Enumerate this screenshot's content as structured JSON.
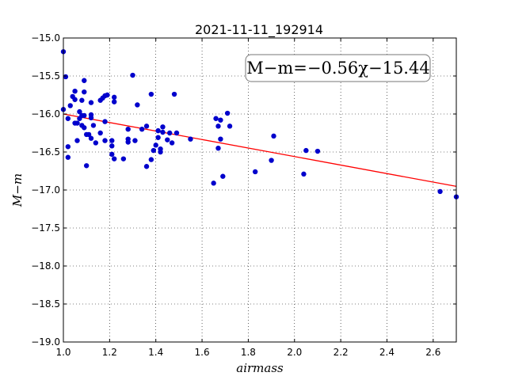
{
  "chart_data": {
    "type": "scatter",
    "title": "2021-11-11_192914",
    "xlabel": "airmass",
    "ylabel": "M−m",
    "xlim": [
      1.0,
      2.7
    ],
    "ylim": [
      -19.0,
      -15.0
    ],
    "xticks": [
      "1.0",
      "1.2",
      "1.4",
      "1.6",
      "1.8",
      "2.0",
      "2.2",
      "2.4",
      "2.6"
    ],
    "yticks": [
      "−15.0",
      "−15.5",
      "−16.0",
      "−16.5",
      "−17.0",
      "−17.5",
      "−18.0",
      "−18.5",
      "−19.0"
    ],
    "grid": true,
    "annotation": "M−m=−0.56χ−15.44",
    "fit": {
      "slope": -0.56,
      "intercept": -15.44,
      "color": "#ff0000"
    },
    "marker_color": "#0000cc",
    "points": [
      [
        1.0,
        -15.18
      ],
      [
        1.01,
        -15.51
      ],
      [
        1.0,
        -15.94
      ],
      [
        1.02,
        -16.06
      ],
      [
        1.02,
        -16.43
      ],
      [
        1.02,
        -16.57
      ],
      [
        1.03,
        -15.89
      ],
      [
        1.04,
        -15.77
      ],
      [
        1.05,
        -15.7
      ],
      [
        1.05,
        -15.81
      ],
      [
        1.05,
        -16.12
      ],
      [
        1.06,
        -16.12
      ],
      [
        1.06,
        -16.35
      ],
      [
        1.07,
        -16.06
      ],
      [
        1.07,
        -15.97
      ],
      [
        1.08,
        -16.15
      ],
      [
        1.08,
        -16.02
      ],
      [
        1.08,
        -15.82
      ],
      [
        1.09,
        -15.56
      ],
      [
        1.09,
        -15.71
      ],
      [
        1.09,
        -16.18
      ],
      [
        1.09,
        -16.02
      ],
      [
        1.1,
        -16.68
      ],
      [
        1.1,
        -16.27
      ],
      [
        1.11,
        -16.27
      ],
      [
        1.12,
        -16.05
      ],
      [
        1.12,
        -16.32
      ],
      [
        1.12,
        -15.85
      ],
      [
        1.12,
        -16.01
      ],
      [
        1.13,
        -16.15
      ],
      [
        1.14,
        -16.38
      ],
      [
        1.16,
        -16.25
      ],
      [
        1.16,
        -15.82
      ],
      [
        1.17,
        -15.79
      ],
      [
        1.18,
        -15.76
      ],
      [
        1.18,
        -16.1
      ],
      [
        1.18,
        -16.35
      ],
      [
        1.19,
        -15.75
      ],
      [
        1.21,
        -16.35
      ],
      [
        1.21,
        -16.42
      ],
      [
        1.21,
        -16.53
      ],
      [
        1.22,
        -16.59
      ],
      [
        1.22,
        -15.84
      ],
      [
        1.22,
        -15.78
      ],
      [
        1.26,
        -16.59
      ],
      [
        1.28,
        -16.2
      ],
      [
        1.28,
        -16.33
      ],
      [
        1.28,
        -16.37
      ],
      [
        1.3,
        -15.49
      ],
      [
        1.31,
        -16.35
      ],
      [
        1.32,
        -15.88
      ],
      [
        1.34,
        -16.2
      ],
      [
        1.36,
        -16.16
      ],
      [
        1.36,
        -16.69
      ],
      [
        1.38,
        -15.74
      ],
      [
        1.38,
        -16.6
      ],
      [
        1.39,
        -16.48
      ],
      [
        1.4,
        -16.41
      ],
      [
        1.41,
        -16.31
      ],
      [
        1.41,
        -16.22
      ],
      [
        1.42,
        -16.5
      ],
      [
        1.42,
        -16.46
      ],
      [
        1.43,
        -16.17
      ],
      [
        1.43,
        -16.24
      ],
      [
        1.45,
        -16.34
      ],
      [
        1.46,
        -16.25
      ],
      [
        1.47,
        -16.38
      ],
      [
        1.48,
        -15.74
      ],
      [
        1.49,
        -16.25
      ],
      [
        1.55,
        -16.33
      ],
      [
        1.65,
        -16.91
      ],
      [
        1.66,
        -16.06
      ],
      [
        1.67,
        -16.45
      ],
      [
        1.67,
        -16.16
      ],
      [
        1.68,
        -16.33
      ],
      [
        1.68,
        -16.08
      ],
      [
        1.69,
        -16.82
      ],
      [
        1.71,
        -15.99
      ],
      [
        1.72,
        -16.16
      ],
      [
        1.83,
        -16.76
      ],
      [
        1.9,
        -16.61
      ],
      [
        1.91,
        -16.29
      ],
      [
        2.04,
        -16.79
      ],
      [
        2.05,
        -16.48
      ],
      [
        2.1,
        -16.49
      ],
      [
        2.63,
        -17.02
      ],
      [
        2.7,
        -17.09
      ]
    ]
  }
}
